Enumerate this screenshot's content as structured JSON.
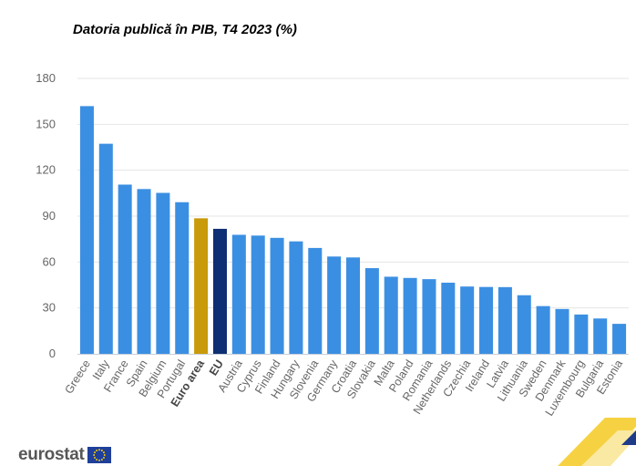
{
  "chart_data": {
    "type": "bar",
    "title": "Datoria publică în PIB, T4 2023 (%)",
    "xlabel": "",
    "ylabel": "",
    "ylim": [
      0,
      180
    ],
    "yticks": [
      0,
      30,
      60,
      90,
      120,
      150,
      180
    ],
    "grid": true,
    "categories": [
      "Greece",
      "Italy",
      "France",
      "Spain",
      "Belgium",
      "Portugal",
      "Euro area",
      "EU",
      "Austria",
      "Cyprus",
      "Finland",
      "Hungary",
      "Slovenia",
      "Germany",
      "Croatia",
      "Slovakia",
      "Malta",
      "Poland",
      "Romania",
      "Netherlands",
      "Czechia",
      "Ireland",
      "Latvia",
      "Lithuania",
      "Sweden",
      "Denmark",
      "Luxembourg",
      "Bulgaria",
      "Estonia"
    ],
    "values": [
      161.9,
      137.3,
      110.6,
      107.7,
      105.2,
      99.1,
      88.6,
      81.7,
      77.8,
      77.3,
      75.8,
      73.5,
      69.2,
      63.6,
      63.0,
      56.0,
      50.4,
      49.6,
      48.8,
      46.5,
      44.0,
      43.7,
      43.6,
      38.3,
      31.2,
      29.3,
      25.7,
      23.1,
      19.6
    ],
    "highlight_categories": [
      "Euro area",
      "EU"
    ],
    "colors": {
      "default": "#3b8fe2",
      "Euro area": "#c99a0a",
      "EU": "#0e2f73",
      "grid": "#e4e4e4",
      "axis": "#c8d0dc"
    }
  },
  "footer": {
    "logo_text": "eurostat",
    "logo_icon": "eu-flag-icon",
    "corner_decoration": "yellow-blue-stripes"
  }
}
